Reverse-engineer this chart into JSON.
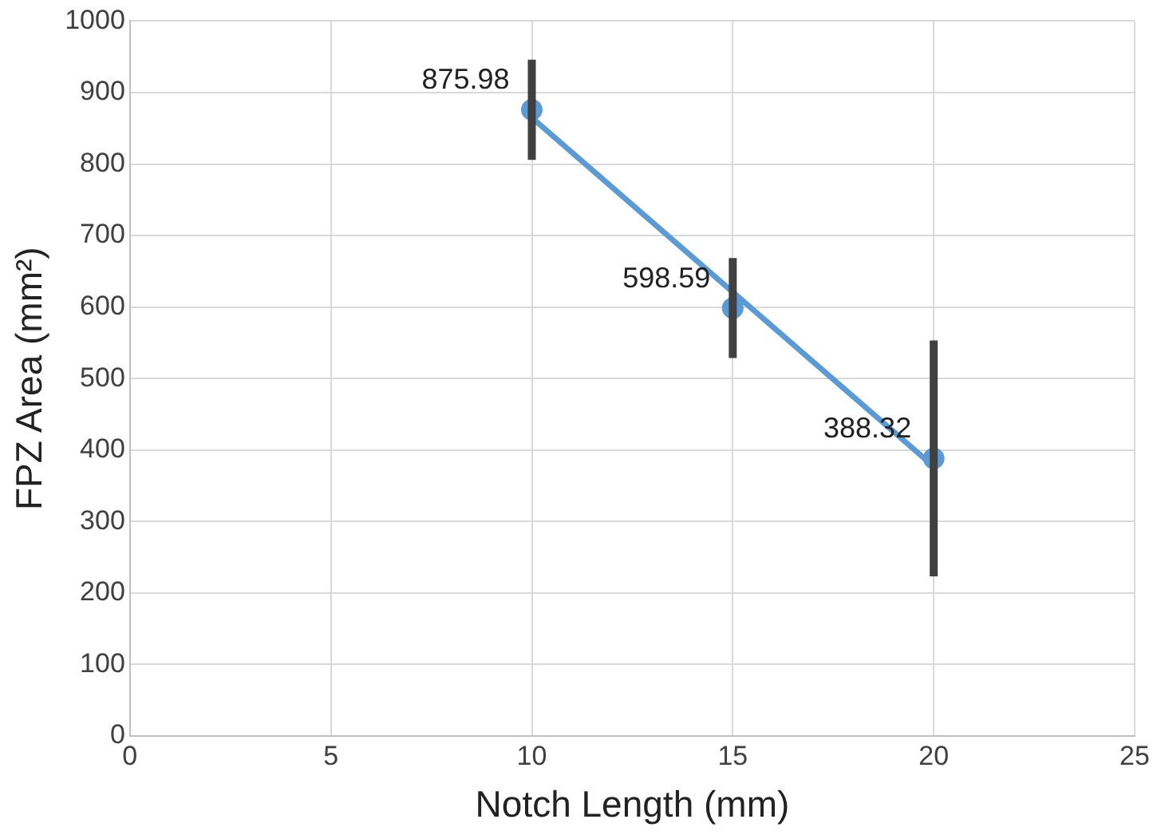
{
  "chart_data": {
    "type": "scatter",
    "xlabel": "Notch Length (mm)",
    "ylabel": "FPZ Area (mm²)",
    "xlim": [
      0,
      25
    ],
    "xticks": [
      0,
      5,
      10,
      15,
      20,
      25
    ],
    "ylim": [
      0,
      1000
    ],
    "yticks": [
      0,
      100,
      200,
      300,
      400,
      500,
      600,
      700,
      800,
      900,
      1000
    ],
    "grid": true,
    "legend": false,
    "marker": "circle",
    "series": [
      {
        "color": "#5b9bd5",
        "x": [
          10,
          15,
          20
        ],
        "values": [
          875.98,
          598.59,
          388.32
        ],
        "errors": [
          70,
          70,
          165
        ],
        "value_labels": [
          "875.98",
          "598.59",
          "388.32"
        ]
      },
      {
        "type": "line",
        "color": "#5b9bd5",
        "x": [
          10,
          20
        ],
        "values": [
          865,
          377
        ],
        "marker": "none"
      }
    ]
  }
}
